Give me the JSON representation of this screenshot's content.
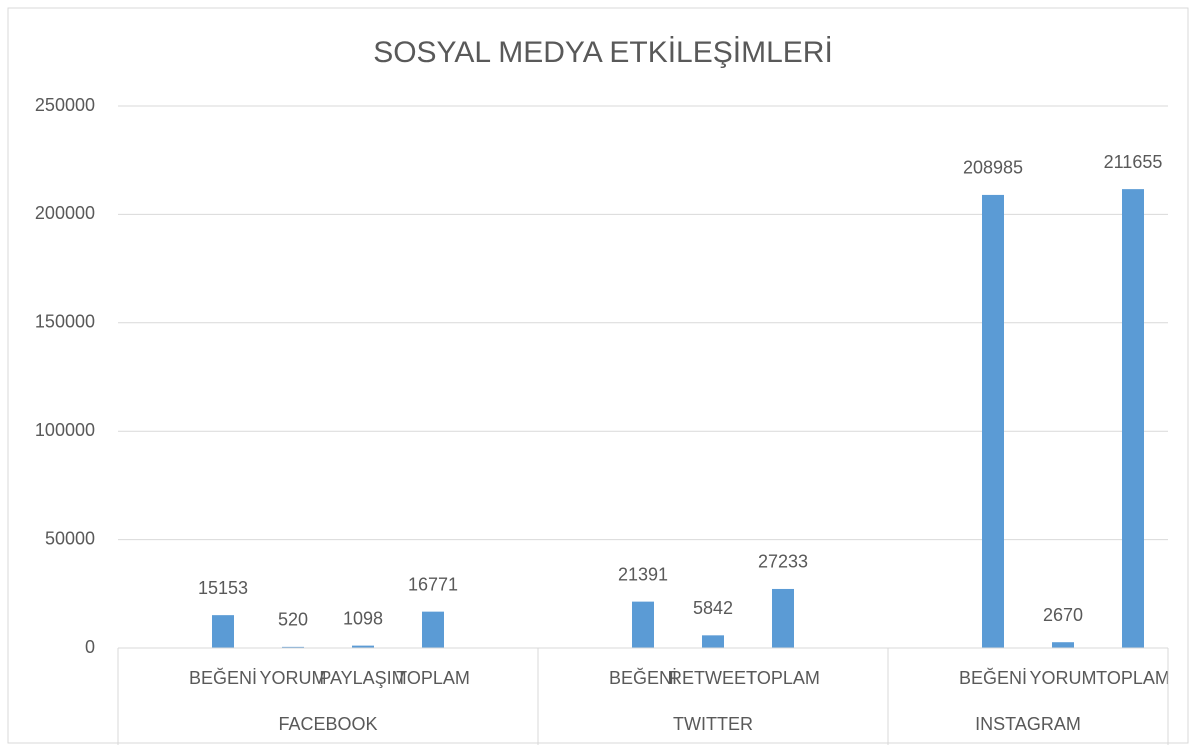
{
  "chart_data": {
    "type": "bar",
    "title": "SOSYAL MEDYA ETKİLEŞİMLERİ",
    "groups": [
      {
        "name": "FACEBOOK",
        "categories": [
          null,
          "BEĞENİ",
          "YORUM",
          "PAYLAŞIM",
          "TOPLAM",
          null
        ],
        "values": [
          null,
          15153,
          520,
          1098,
          16771,
          null
        ]
      },
      {
        "name": "TWITTER",
        "categories": [
          null,
          "BEĞENİ",
          "RETWEET",
          "TOPLAM",
          null
        ],
        "values": [
          null,
          21391,
          5842,
          27233,
          null
        ]
      },
      {
        "name": "INSTAGRAM",
        "categories": [
          null,
          "BEĞENİ",
          "YORUM",
          "TOPLAM"
        ],
        "values": [
          null,
          208985,
          2670,
          211655
        ]
      }
    ],
    "color": "#5b9bd5",
    "ylim": [
      0,
      250000
    ],
    "yticks": [
      0,
      50000,
      100000,
      150000,
      200000,
      250000
    ],
    "grid": true
  }
}
